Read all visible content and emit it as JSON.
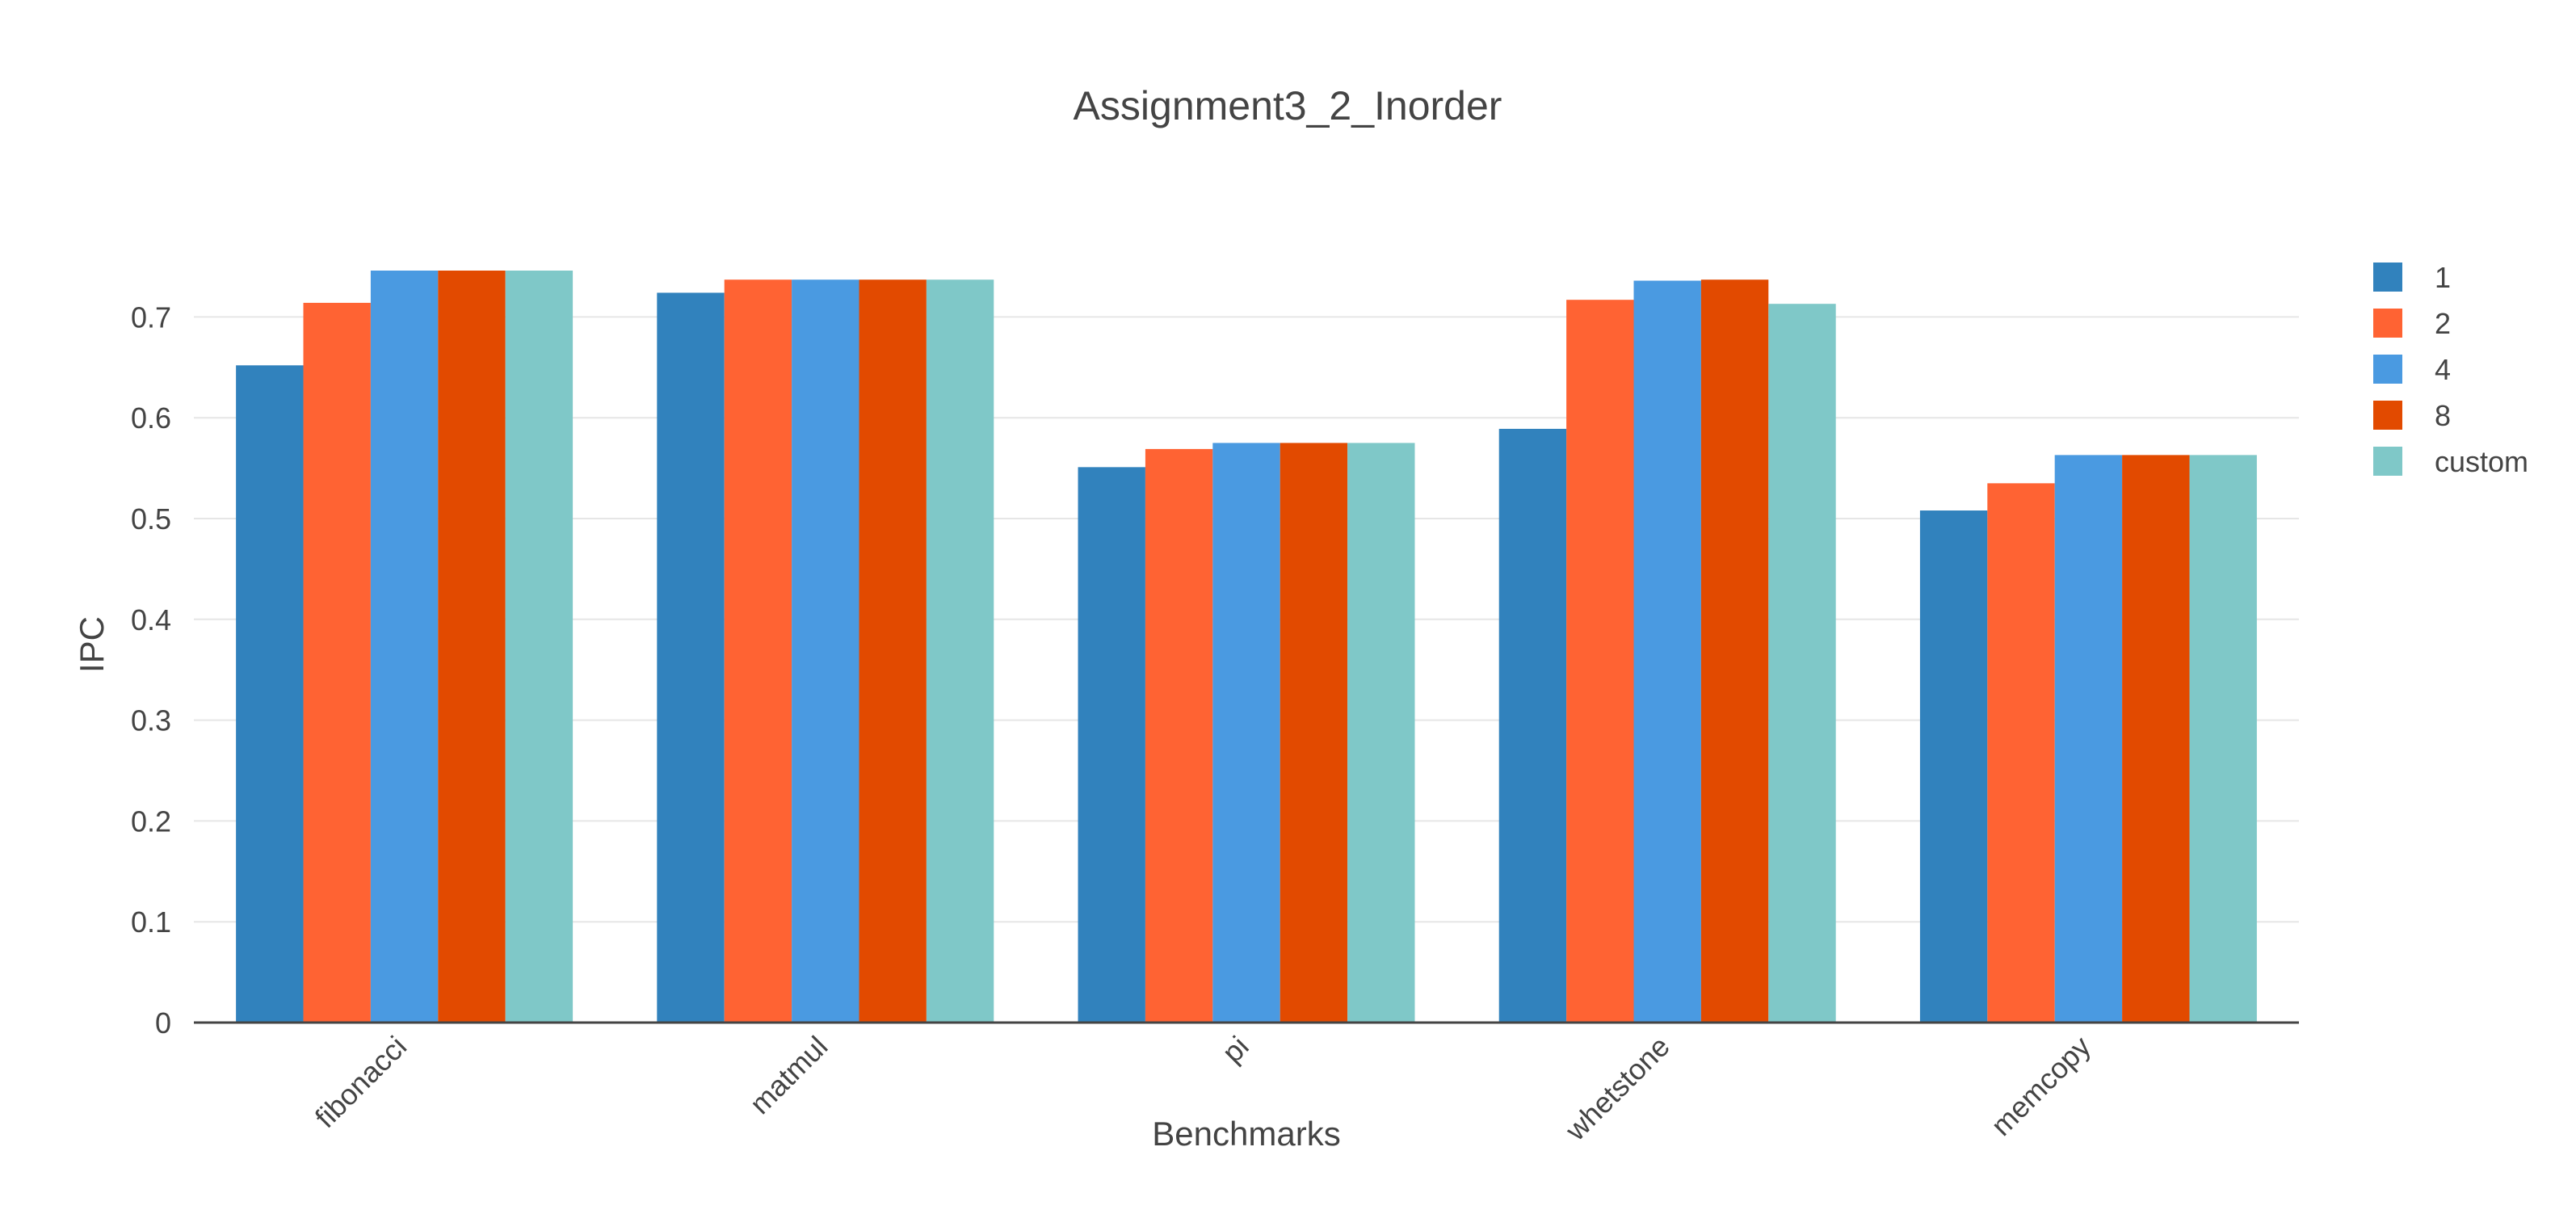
{
  "chart_data": {
    "type": "bar",
    "title": "Assignment3_2_Inorder",
    "xlabel": "Benchmarks",
    "ylabel": "IPC",
    "categories": [
      "fibonacci",
      "matmul",
      "pi",
      "whetstone",
      "memcopy"
    ],
    "ylim": [
      0,
      0.75
    ],
    "yticks": [
      0,
      0.1,
      0.2,
      0.3,
      0.4,
      0.5,
      0.6,
      0.7
    ],
    "ytick_labels": [
      "0",
      "0.1",
      "0.2",
      "0.3",
      "0.4",
      "0.5",
      "0.6",
      "0.7"
    ],
    "grid": true,
    "legend_position": "top-right",
    "series": [
      {
        "name": "1",
        "color": "#3182bd",
        "values": [
          0.652,
          0.724,
          0.551,
          0.589,
          0.508
        ]
      },
      {
        "name": "2",
        "color": "#ff6333",
        "values": [
          0.714,
          0.737,
          0.569,
          0.717,
          0.535
        ]
      },
      {
        "name": "4",
        "color": "#4a9ae1",
        "values": [
          0.746,
          0.737,
          0.575,
          0.736,
          0.563
        ]
      },
      {
        "name": "8",
        "color": "#e24a00",
        "values": [
          0.746,
          0.737,
          0.575,
          0.737,
          0.563
        ]
      },
      {
        "name": "custom",
        "color": "#7fc8c8",
        "values": [
          0.746,
          0.737,
          0.575,
          0.713,
          0.563
        ]
      }
    ]
  }
}
